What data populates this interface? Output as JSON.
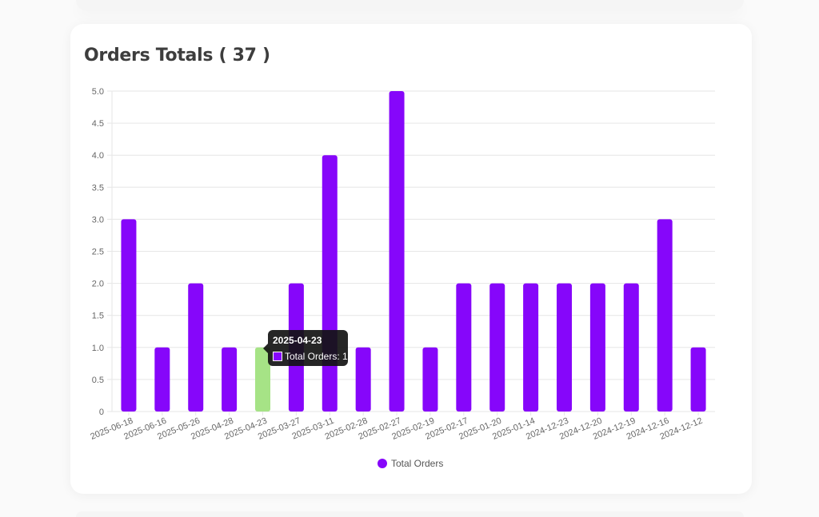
{
  "title": "Orders Totals ( 37 )",
  "chart_data": {
    "type": "bar",
    "categories": [
      "2025-06-18",
      "2025-06-16",
      "2025-05-26",
      "2025-04-28",
      "2025-04-23",
      "2025-03-27",
      "2025-03-11",
      "2025-02-28",
      "2025-02-27",
      "2025-02-19",
      "2025-02-17",
      "2025-01-20",
      "2025-01-14",
      "2024-12-23",
      "2024-12-20",
      "2024-12-19",
      "2024-12-16",
      "2024-12-12"
    ],
    "series": [
      {
        "name": "Total Orders",
        "values": [
          3,
          1,
          2,
          1,
          1,
          2,
          4,
          1,
          5,
          1,
          2,
          2,
          2,
          2,
          2,
          2,
          3,
          1
        ]
      }
    ],
    "ylim": [
      0,
      5
    ],
    "yticks": [
      "0",
      "0.5",
      "1.0",
      "1.5",
      "2.0",
      "2.5",
      "3.0",
      "3.5",
      "4.0",
      "4.5",
      "5.0"
    ],
    "grid": true,
    "legend_position": "bottom",
    "highlighted_index": 4
  },
  "colors": {
    "bar": "#8606fa",
    "bar_highlight": "#a6e386",
    "grid": "#e6e6e6",
    "tick_text": "#666666"
  },
  "tooltip": {
    "title": "2025-04-23",
    "label": "Total Orders: 1"
  },
  "legend": {
    "label": "Total Orders"
  }
}
